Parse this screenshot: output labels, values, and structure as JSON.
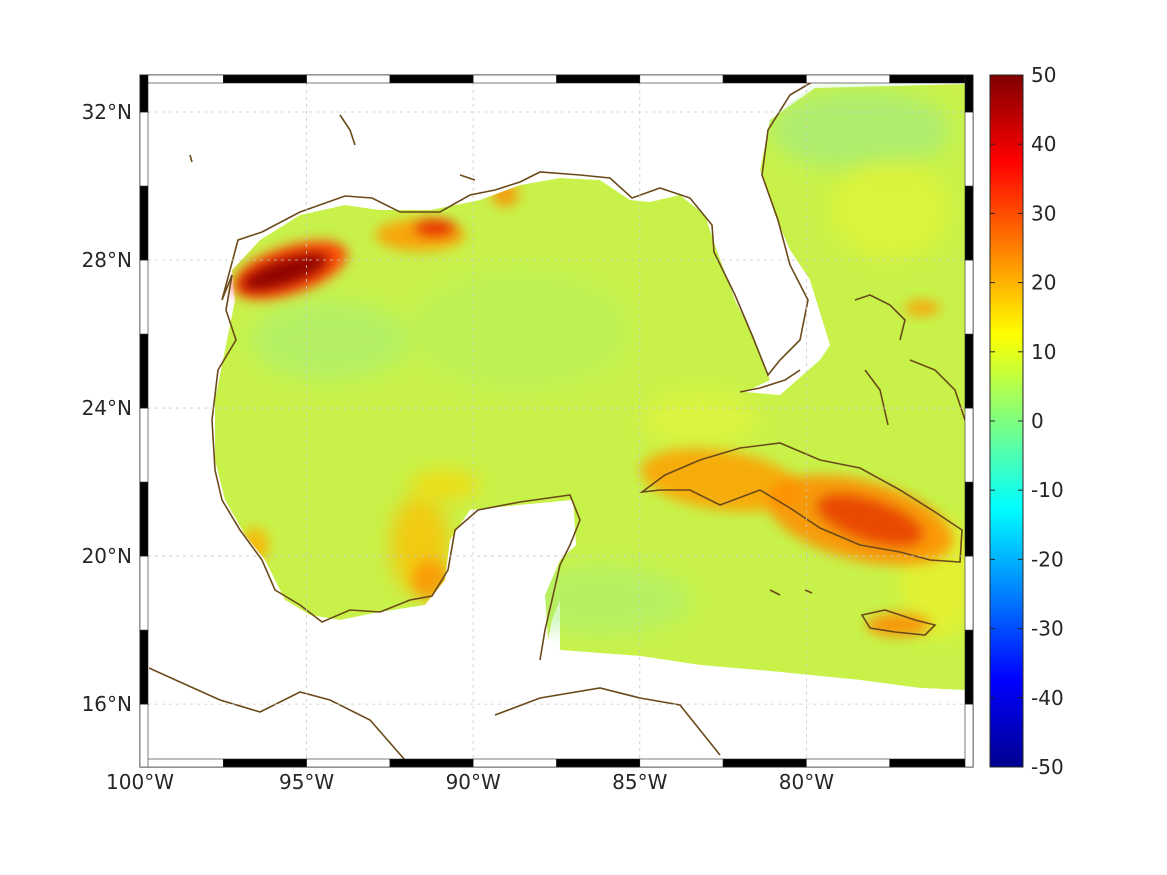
{
  "map": {
    "type": "filled-contour-map",
    "region": "Gulf of Mexico and Caribbean",
    "lon_range": [
      -100,
      -75
    ],
    "lat_range": [
      14.3,
      33
    ],
    "lon_ticks": [
      {
        "value": -100,
        "label": "100°W"
      },
      {
        "value": -95,
        "label": "95°W"
      },
      {
        "value": -90,
        "label": "90°W"
      },
      {
        "value": -85,
        "label": "85°W"
      },
      {
        "value": -80,
        "label": "80°W"
      }
    ],
    "lat_ticks": [
      {
        "value": 32,
        "label": "32°N"
      },
      {
        "value": 28,
        "label": "28°N"
      },
      {
        "value": 24,
        "label": "24°N"
      },
      {
        "value": 20,
        "label": "20°N"
      },
      {
        "value": 16,
        "label": "16°N"
      }
    ],
    "grid": true,
    "coastline_color": "#6b4a1a"
  },
  "colorbar": {
    "colormap": "jet",
    "range": [
      -50,
      50
    ],
    "ticks": [
      {
        "value": 50,
        "label": "50"
      },
      {
        "value": 40,
        "label": "40"
      },
      {
        "value": 30,
        "label": "30"
      },
      {
        "value": 20,
        "label": "20"
      },
      {
        "value": 10,
        "label": "10"
      },
      {
        "value": 0,
        "label": "0"
      },
      {
        "value": -10,
        "label": "-10"
      },
      {
        "value": -20,
        "label": "-20"
      },
      {
        "value": -30,
        "label": "-30"
      },
      {
        "value": -40,
        "label": "-40"
      },
      {
        "value": -50,
        "label": "-50"
      }
    ]
  },
  "chart_data": {
    "type": "heatmap",
    "field_background_value": 6,
    "hotspots": [
      {
        "name": "Texas coast",
        "lon": -95.5,
        "lat": 27.8,
        "value": 50
      },
      {
        "name": "Louisiana shelf",
        "lon": -91.5,
        "lat": 28.9,
        "value": 25
      },
      {
        "name": "Mississippi delta",
        "lon": -89.2,
        "lat": 29.6,
        "value": 22
      },
      {
        "name": "Cuba west",
        "lon": -83.0,
        "lat": 22.3,
        "value": 28
      },
      {
        "name": "Cuba east",
        "lon": -78.5,
        "lat": 21.2,
        "value": 32
      },
      {
        "name": "Bay of Campeche",
        "lon": -92.3,
        "lat": 19.5,
        "value": 20
      },
      {
        "name": "Jamaica",
        "lon": -77.3,
        "lat": 18.1,
        "value": 28
      },
      {
        "name": "Bahamas",
        "lon": -76.7,
        "lat": 26.7,
        "value": 24
      }
    ]
  }
}
